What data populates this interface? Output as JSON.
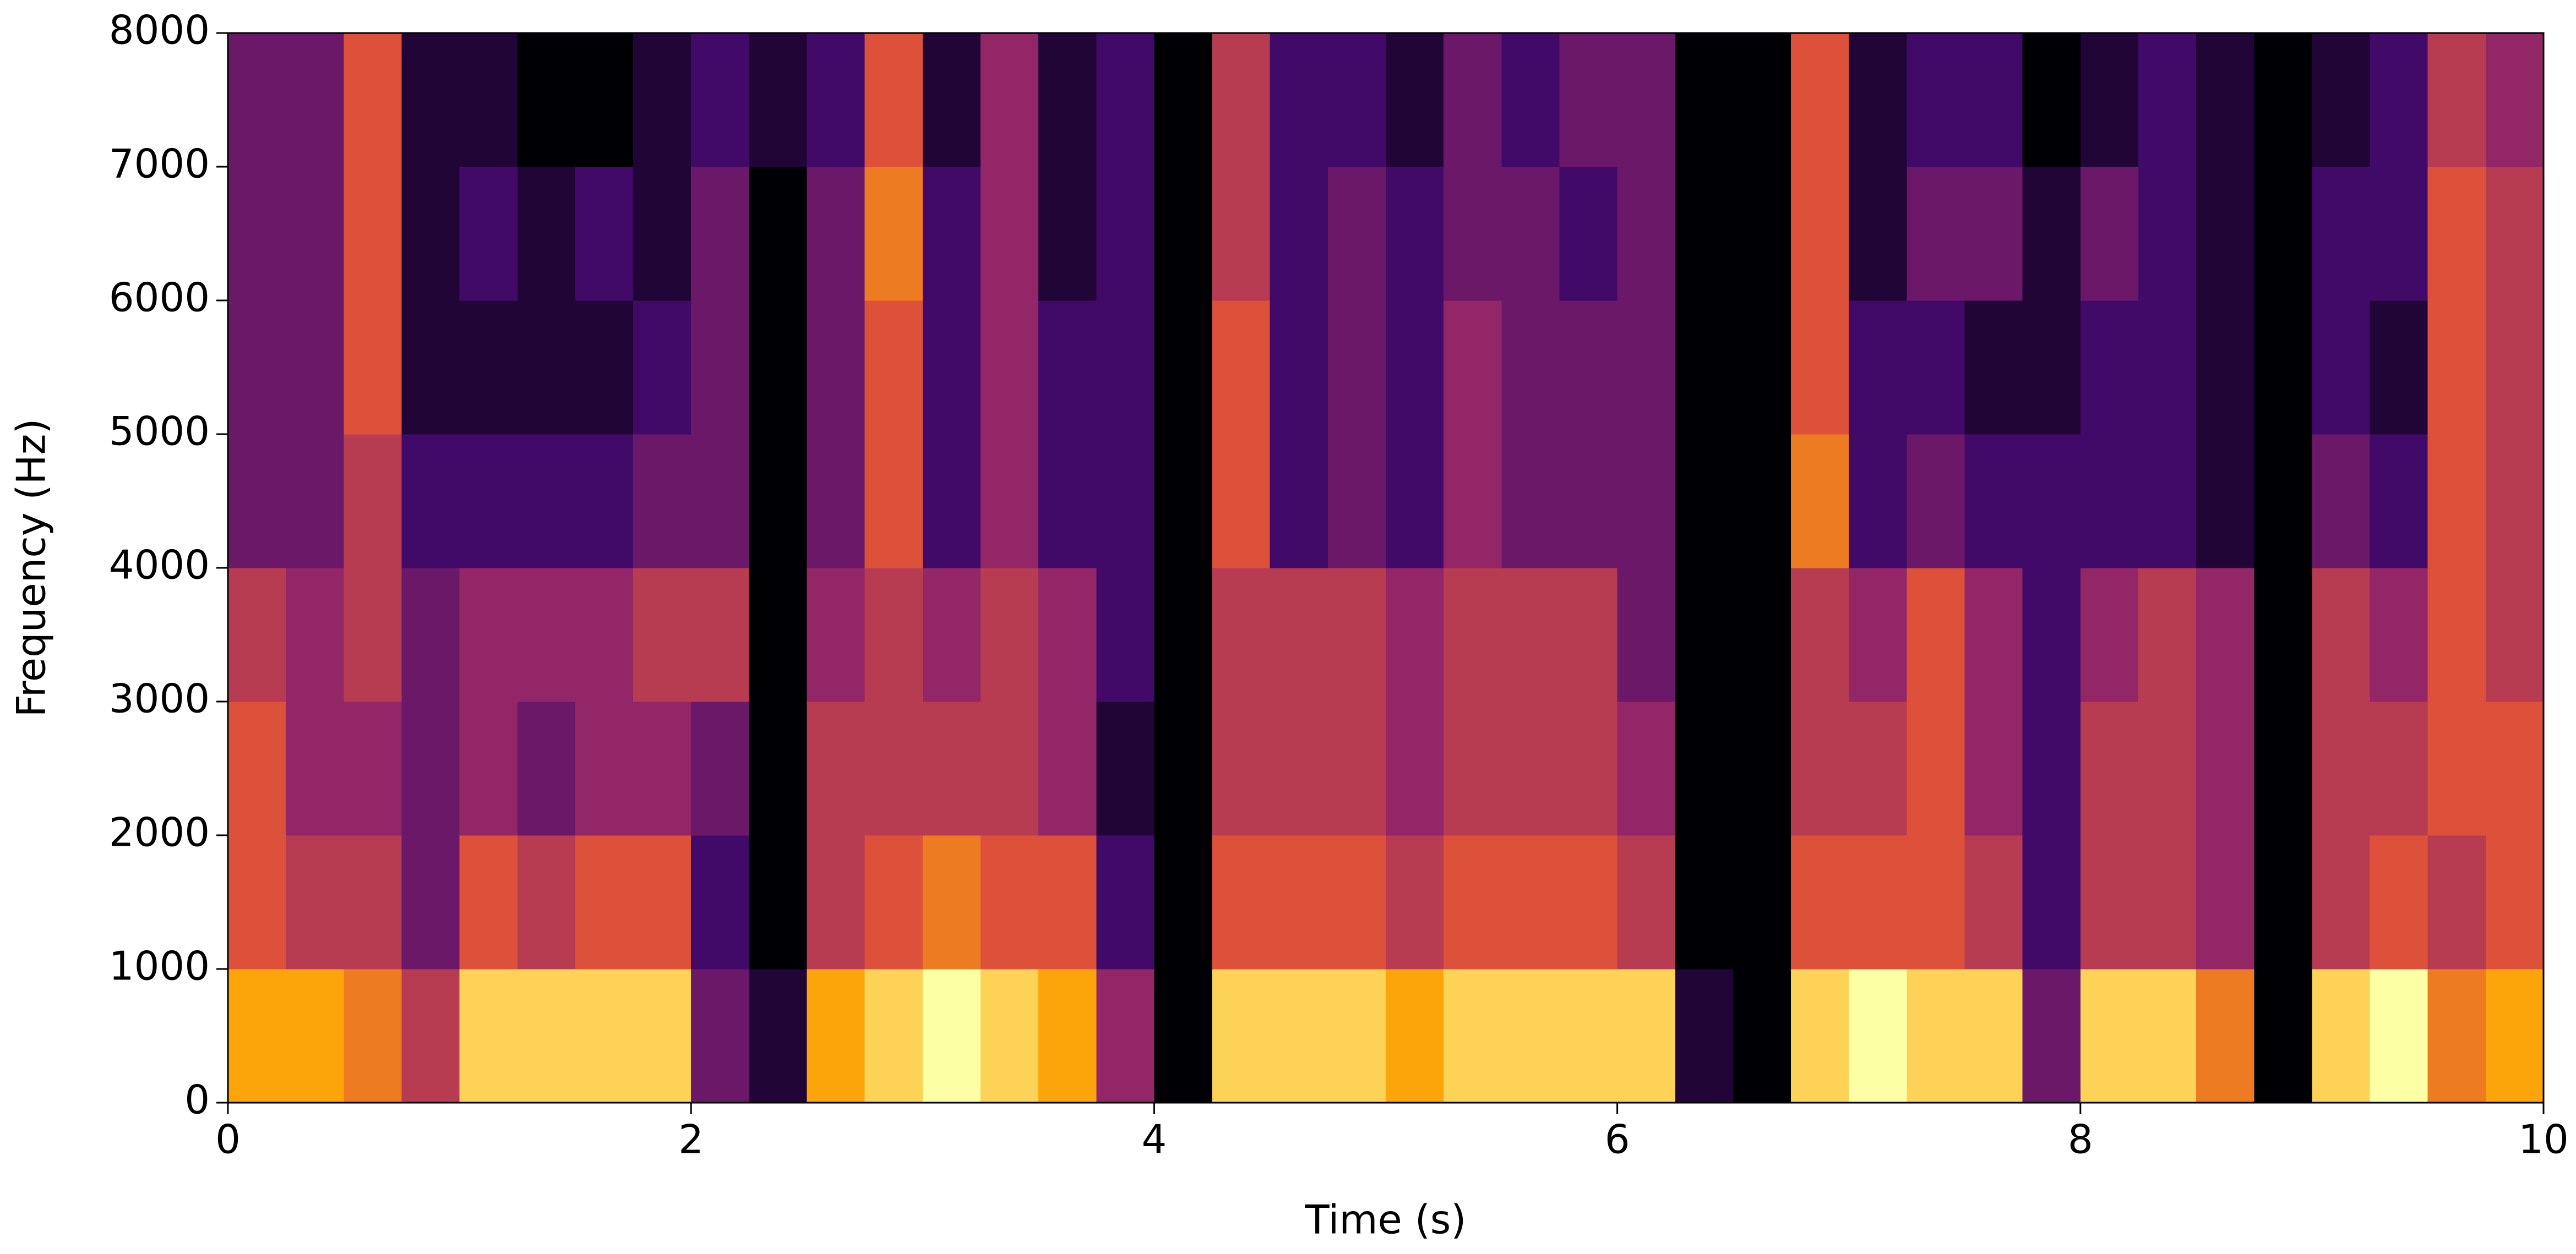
{
  "chart_data": {
    "type": "spectrogram",
    "x_label": "Time (s)",
    "y_label": "Frequency (Hz)",
    "xlim": [
      0,
      10
    ],
    "ylim": [
      0,
      8000
    ],
    "xticks": [
      0,
      2,
      4,
      6,
      8,
      10
    ],
    "yticks": [
      0,
      1000,
      2000,
      3000,
      4000,
      5000,
      6000,
      7000,
      8000
    ],
    "colormap": [
      "#000004",
      "#420a68",
      "#932667",
      "#dd513a",
      "#fca50a",
      "#fcffa4"
    ],
    "xbins": [
      0,
      0.25,
      0.5,
      0.75,
      1,
      1.25,
      1.5,
      1.75,
      2,
      2.25,
      2.5,
      2.75,
      3,
      3.25,
      3.5,
      3.75,
      4,
      4.25,
      4.5,
      4.75,
      5,
      5.25,
      5.5,
      5.75,
      6,
      6.25,
      6.5,
      6.75,
      7,
      7.25,
      7.5,
      7.75,
      8,
      8.25,
      8.5,
      8.75,
      9,
      9.25,
      9.5,
      9.75,
      10
    ],
    "ybins": [
      0,
      1000,
      2000,
      3000,
      4000,
      5000,
      6000,
      7000,
      8000
    ],
    "z": [
      [
        0.8,
        0.8,
        0.7,
        0.5,
        0.9,
        0.9,
        0.9,
        0.9,
        0.3,
        0.1,
        0.8,
        0.9,
        1.0,
        0.9,
        0.8,
        0.4,
        0.0,
        0.9,
        0.9,
        0.9,
        0.8,
        0.9,
        0.9,
        0.9,
        0.9,
        0.1,
        0.0,
        0.9,
        1.0,
        0.9,
        0.9,
        0.3,
        0.9,
        0.9,
        0.7,
        0.0,
        0.9,
        1.0,
        0.7,
        0.8
      ],
      [
        0.6,
        0.5,
        0.5,
        0.3,
        0.6,
        0.5,
        0.6,
        0.6,
        0.2,
        0.0,
        0.5,
        0.6,
        0.7,
        0.6,
        0.6,
        0.2,
        0.0,
        0.6,
        0.6,
        0.6,
        0.5,
        0.6,
        0.6,
        0.6,
        0.5,
        0.0,
        0.0,
        0.6,
        0.6,
        0.6,
        0.5,
        0.2,
        0.5,
        0.5,
        0.4,
        0.0,
        0.5,
        0.6,
        0.5,
        0.6
      ],
      [
        0.6,
        0.4,
        0.4,
        0.3,
        0.4,
        0.3,
        0.4,
        0.4,
        0.3,
        0.0,
        0.5,
        0.5,
        0.5,
        0.5,
        0.4,
        0.1,
        0.0,
        0.5,
        0.5,
        0.5,
        0.4,
        0.5,
        0.5,
        0.5,
        0.4,
        0.0,
        0.0,
        0.5,
        0.5,
        0.6,
        0.4,
        0.2,
        0.5,
        0.5,
        0.4,
        0.0,
        0.5,
        0.5,
        0.6,
        0.6
      ],
      [
        0.5,
        0.4,
        0.5,
        0.3,
        0.4,
        0.4,
        0.4,
        0.5,
        0.5,
        0.0,
        0.4,
        0.5,
        0.4,
        0.5,
        0.4,
        0.2,
        0.0,
        0.5,
        0.5,
        0.5,
        0.4,
        0.5,
        0.5,
        0.5,
        0.3,
        0.0,
        0.0,
        0.5,
        0.4,
        0.6,
        0.4,
        0.2,
        0.4,
        0.5,
        0.4,
        0.0,
        0.5,
        0.4,
        0.6,
        0.5
      ],
      [
        0.3,
        0.3,
        0.5,
        0.2,
        0.2,
        0.2,
        0.2,
        0.3,
        0.3,
        0.0,
        0.3,
        0.6,
        0.2,
        0.4,
        0.2,
        0.2,
        0.0,
        0.6,
        0.2,
        0.3,
        0.2,
        0.4,
        0.3,
        0.3,
        0.3,
        0.0,
        0.0,
        0.7,
        0.2,
        0.3,
        0.2,
        0.2,
        0.2,
        0.2,
        0.1,
        0.0,
        0.3,
        0.2,
        0.6,
        0.5
      ],
      [
        0.3,
        0.3,
        0.6,
        0.1,
        0.1,
        0.1,
        0.1,
        0.2,
        0.3,
        0.0,
        0.3,
        0.6,
        0.2,
        0.4,
        0.2,
        0.2,
        0.0,
        0.6,
        0.2,
        0.3,
        0.2,
        0.4,
        0.3,
        0.3,
        0.3,
        0.0,
        0.0,
        0.6,
        0.2,
        0.2,
        0.1,
        0.1,
        0.2,
        0.2,
        0.1,
        0.0,
        0.2,
        0.1,
        0.6,
        0.5
      ],
      [
        0.3,
        0.3,
        0.6,
        0.1,
        0.2,
        0.1,
        0.2,
        0.1,
        0.3,
        0.0,
        0.3,
        0.7,
        0.2,
        0.4,
        0.1,
        0.2,
        0.0,
        0.5,
        0.2,
        0.3,
        0.2,
        0.3,
        0.3,
        0.2,
        0.3,
        0.0,
        0.0,
        0.6,
        0.1,
        0.3,
        0.3,
        0.1,
        0.3,
        0.2,
        0.1,
        0.0,
        0.2,
        0.2,
        0.6,
        0.5
      ],
      [
        0.3,
        0.3,
        0.6,
        0.1,
        0.1,
        0.0,
        0.0,
        0.1,
        0.2,
        0.1,
        0.2,
        0.6,
        0.1,
        0.4,
        0.1,
        0.2,
        0.0,
        0.5,
        0.2,
        0.2,
        0.1,
        0.3,
        0.2,
        0.3,
        0.3,
        0.0,
        0.0,
        0.6,
        0.1,
        0.2,
        0.2,
        0.0,
        0.1,
        0.2,
        0.1,
        0.0,
        0.1,
        0.2,
        0.5,
        0.4
      ]
    ]
  }
}
